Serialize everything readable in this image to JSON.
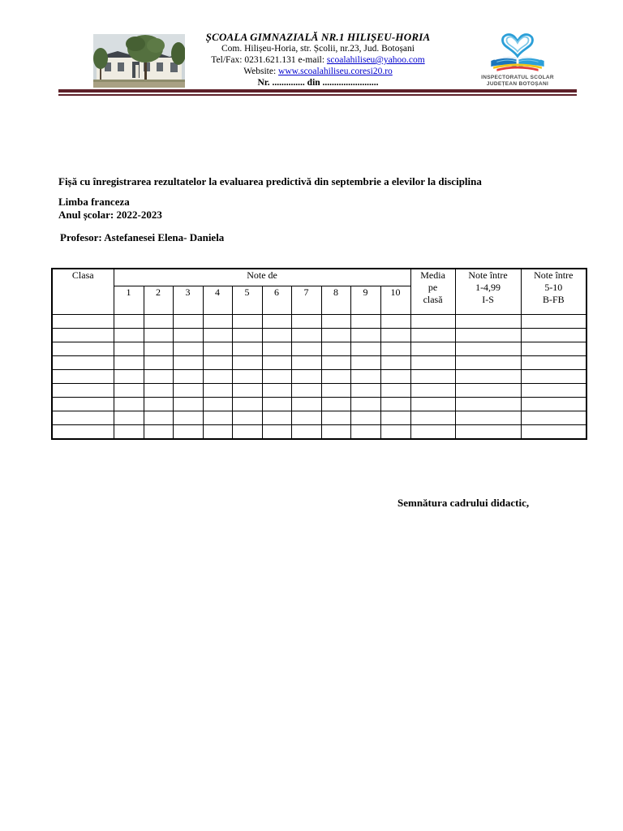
{
  "header": {
    "school_name": "ȘCOALA GIMNAZIALĂ NR.1 HILIȘEU-HORIA",
    "address": "Com. Hilișeu-Horia, str. Școlii, nr.23, Jud. Botoșani",
    "telfax_label": "Tel/Fax: 0231.621.131 e-mail: ",
    "email": "scoalahiliseu@yahoo.com",
    "website_label": "Website: ",
    "website": "www.scoalahiliseu.coresi20.ro",
    "nr_line": "Nr. .............. din ........................",
    "logo_caption": "INSPECTORATUL SCOLAR\nJUDEȚEAN BOTOȘANI"
  },
  "body": {
    "title": "Fișă cu înregistrarea rezultatelor la evaluarea predictivă din septembrie a elevilor la disciplina",
    "subject": "Limba franceza",
    "school_year": "Anul școlar: 2022-2023",
    "teacher": "Profesor: Astefanesei Elena- Daniela",
    "signature": "Semnătura cadrului didactic,"
  },
  "table": {
    "col_clasa": "Clasa",
    "col_note_de": "Note de",
    "note_cols": [
      "1",
      "2",
      "3",
      "4",
      "5",
      "6",
      "7",
      "8",
      "9",
      "10"
    ],
    "col_media": "Media\npe\nclasă",
    "col_note_low": "Note între\n1-4,99\nI-S",
    "col_note_high": "Note între\n5-10\nB-FB",
    "body_row_count": 9,
    "total_columns": 14
  },
  "colors": {
    "separator_maroon": "#5e2129",
    "link_blue": "#0000cc",
    "logo_blue": "#2b9fd8",
    "logo_yellow": "#f5c518",
    "logo_red": "#e23b3b"
  }
}
